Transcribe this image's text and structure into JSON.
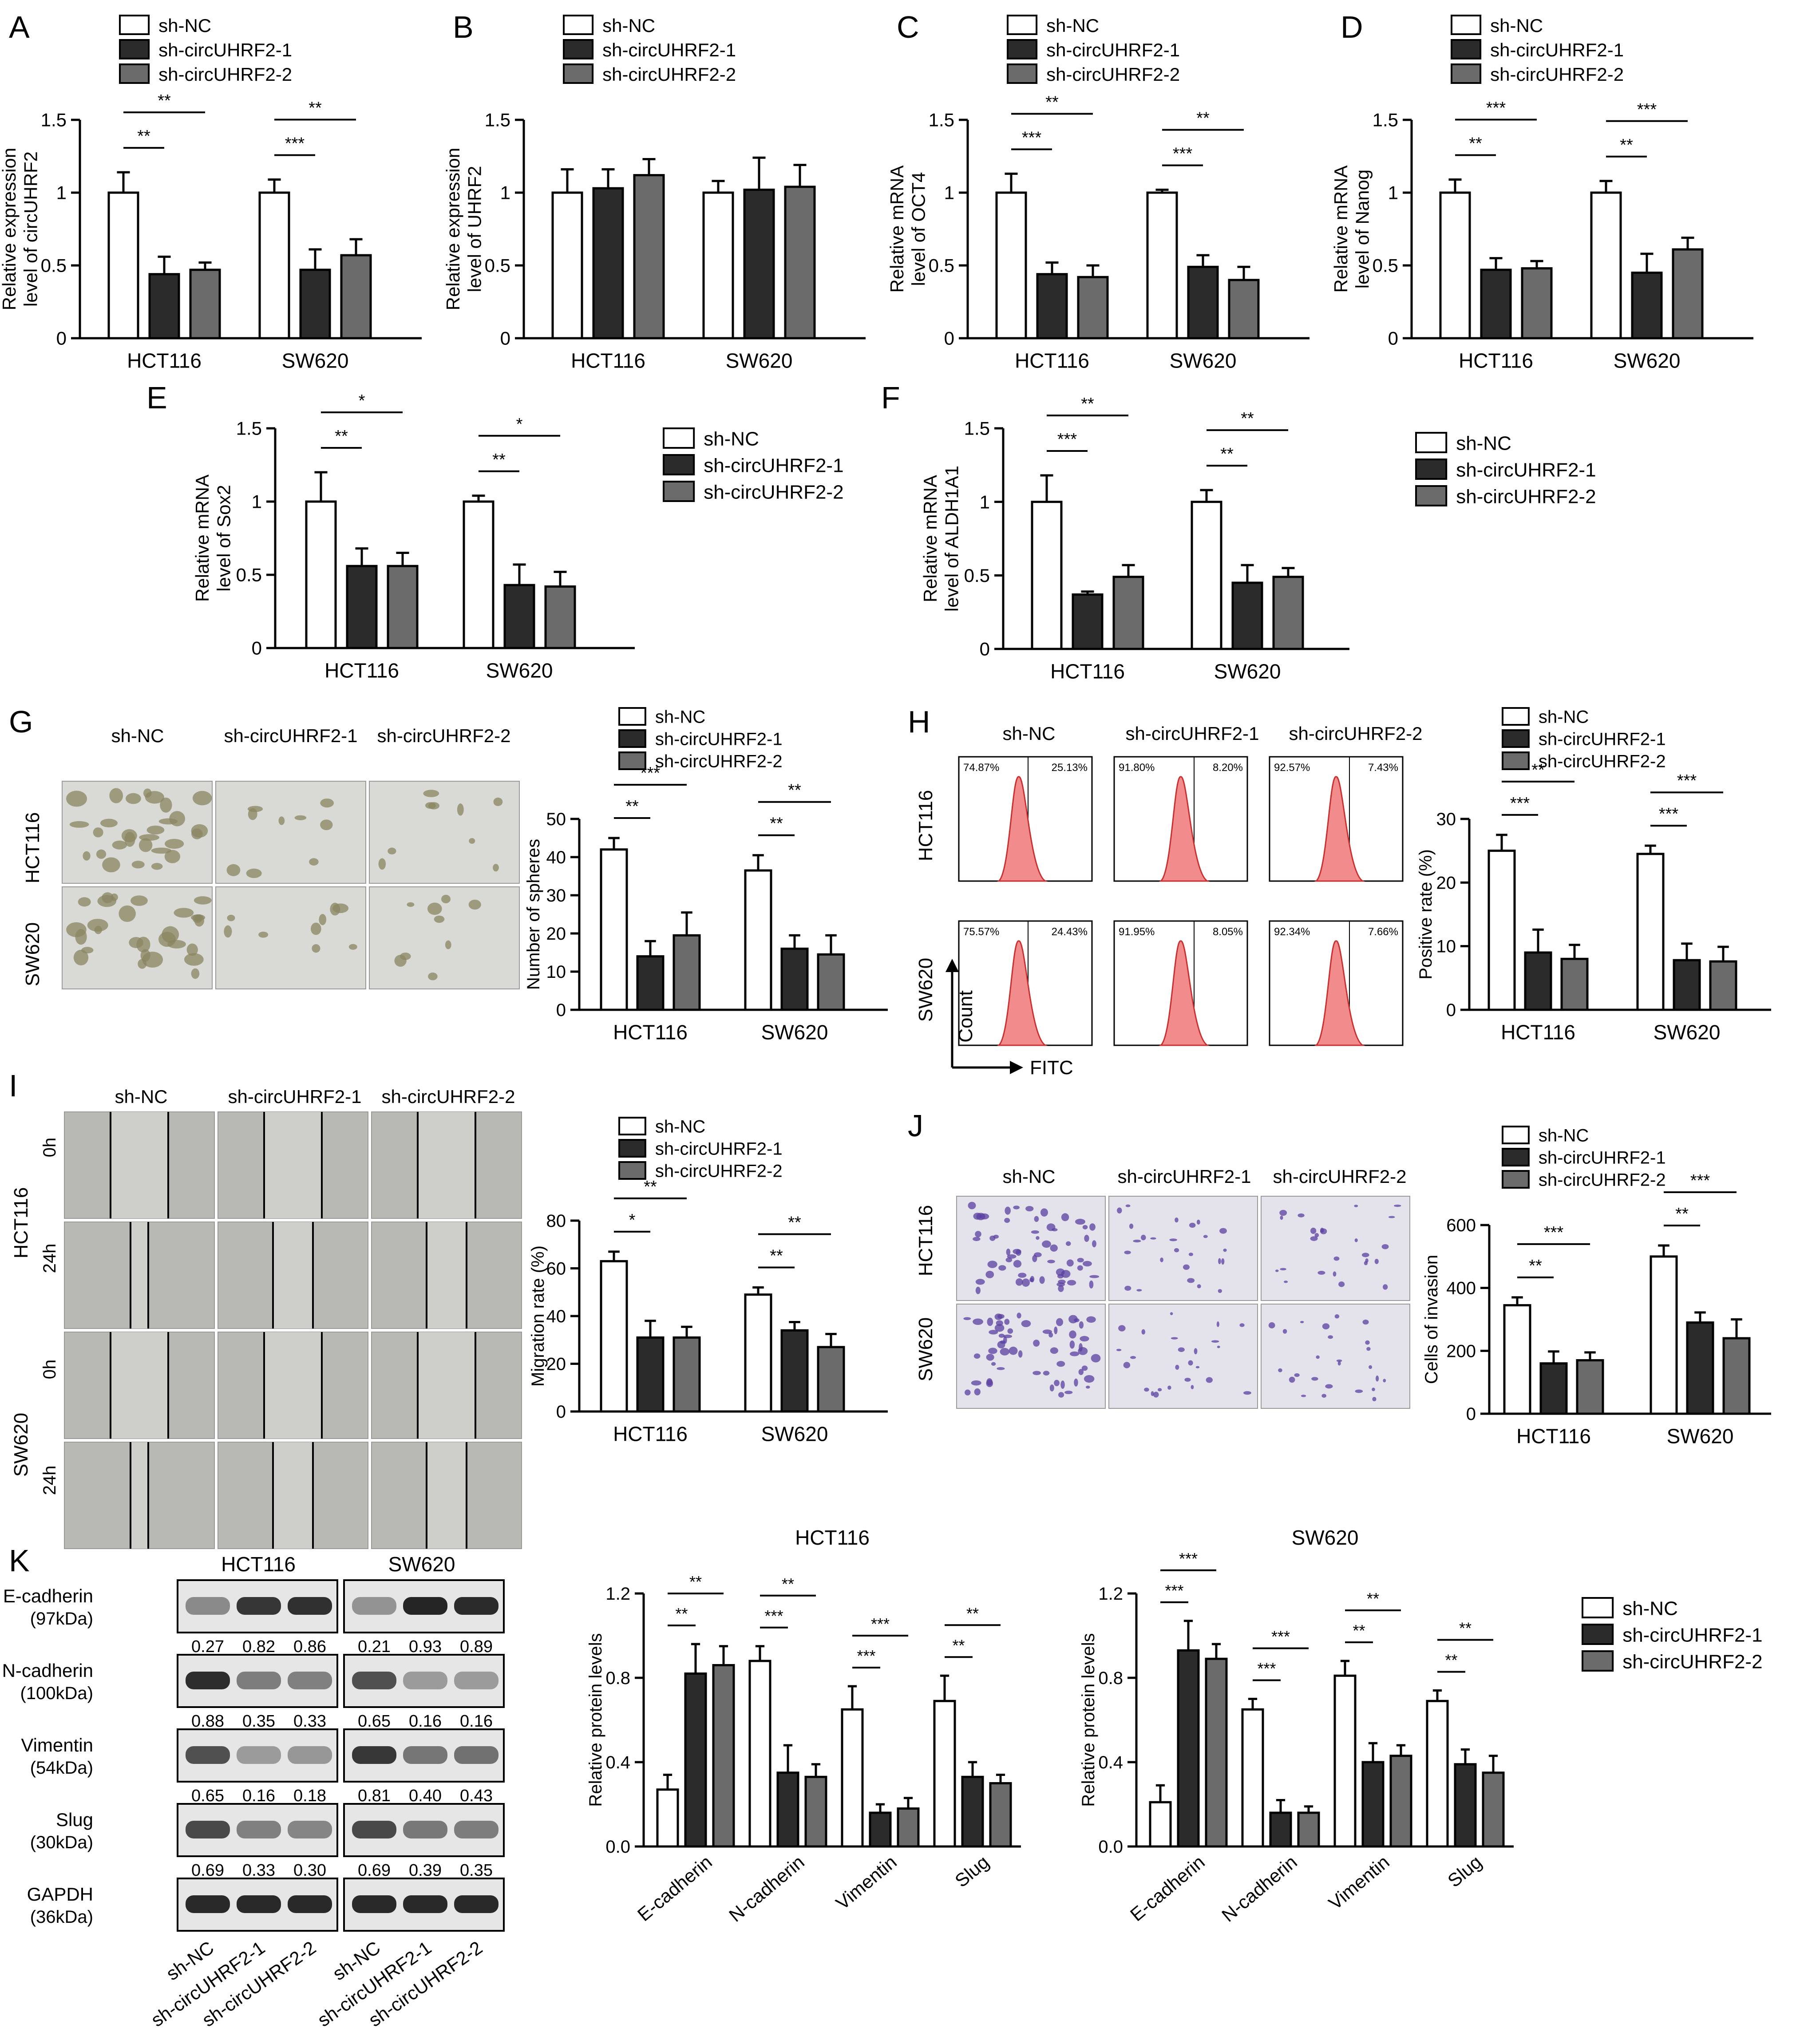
{
  "legend_labels": [
    "sh-NC",
    "sh-circUHRF2-1",
    "sh-circUHRF2-2"
  ],
  "colors": {
    "sh-NC": "#ffffff",
    "sh-circUHRF2-1": "#2b2b2b",
    "sh-circUHRF2-2": "#6b6b6b"
  },
  "groups": [
    "HCT116",
    "SW620"
  ],
  "panels": [
    {
      "letter": "A"
    },
    {
      "letter": "B"
    },
    {
      "letter": "C"
    },
    {
      "letter": "D"
    },
    {
      "letter": "E"
    },
    {
      "letter": "F"
    },
    {
      "letter": "G"
    },
    {
      "letter": "H"
    },
    {
      "letter": "I"
    },
    {
      "letter": "J"
    },
    {
      "letter": "K"
    }
  ],
  "images": {
    "G": {
      "cols": [
        "sh-NC",
        "sh-circUHRF2-1",
        "sh-circUHRF2-2"
      ],
      "rows": [
        "HCT116",
        "SW620"
      ]
    },
    "H": {
      "cols": [
        "sh-NC",
        "sh-circUHRF2-1",
        "sh-circUHRF2-2"
      ],
      "rows": [
        "HCT116",
        "SW620"
      ],
      "axis_y": "Count",
      "axis_x": "FITC",
      "quadrants": [
        [
          "74.87%",
          "25.13%"
        ],
        [
          "91.80%",
          "8.20%"
        ],
        [
          "92.57%",
          "7.43%"
        ],
        [
          "75.57%",
          "24.43%"
        ],
        [
          "91.95%",
          "8.05%"
        ],
        [
          "92.34%",
          "7.66%"
        ]
      ]
    },
    "I": {
      "cols": [
        "sh-NC",
        "sh-circUHRF2-1",
        "sh-circUHRF2-2"
      ],
      "rows": [
        "HCT116",
        "SW620"
      ],
      "times": [
        "0h",
        "24h"
      ]
    },
    "J": {
      "cols": [
        "sh-NC",
        "sh-circUHRF2-1",
        "sh-circUHRF2-2"
      ],
      "rows": [
        "HCT116",
        "SW620"
      ]
    }
  },
  "western": {
    "cell_lines": [
      "HCT116",
      "SW620"
    ],
    "lane_labels": [
      "sh-NC",
      "sh-circUHRF2-1",
      "sh-circUHRF2-2",
      "sh-NC",
      "sh-circUHRF2-1",
      "sh-circUHRF2-2"
    ],
    "proteins": [
      {
        "name": "E-cadherin",
        "kda": "(97kDa)",
        "values": [
          "0.27",
          "0.82",
          "0.86",
          "0.21",
          "0.93",
          "0.89"
        ]
      },
      {
        "name": "N-cadherin",
        "kda": "(100kDa)",
        "values": [
          "0.88",
          "0.35",
          "0.33",
          "0.65",
          "0.16",
          "0.16"
        ]
      },
      {
        "name": "Vimentin",
        "kda": "(54kDa)",
        "values": [
          "0.65",
          "0.16",
          "0.18",
          "0.81",
          "0.40",
          "0.43"
        ]
      },
      {
        "name": "Slug",
        "kda": "(30kDa)",
        "values": [
          "0.69",
          "0.33",
          "0.30",
          "0.69",
          "0.39",
          "0.35"
        ]
      },
      {
        "name": "GAPDH",
        "kda": "(36kDa)",
        "values": []
      }
    ]
  },
  "chart_data": [
    {
      "id": "A",
      "type": "bar",
      "categories": [
        "HCT116",
        "SW620"
      ],
      "ylabel": "Relative expression\nlevel of circUHRF2",
      "ylim": [
        0,
        1.5
      ],
      "yticks": [
        0,
        0.5,
        1.0,
        1.5
      ],
      "series": [
        {
          "name": "sh-NC",
          "values": [
            1.0,
            1.0
          ],
          "err": [
            0.14,
            0.09
          ]
        },
        {
          "name": "sh-circUHRF2-1",
          "values": [
            0.44,
            0.47
          ],
          "err": [
            0.12,
            0.14
          ]
        },
        {
          "name": "sh-circUHRF2-2",
          "values": [
            0.47,
            0.57
          ],
          "err": [
            0.05,
            0.11
          ]
        }
      ],
      "sig": [
        [
          "**",
          "**"
        ],
        [
          "**",
          "***"
        ]
      ]
    },
    {
      "id": "B",
      "type": "bar",
      "categories": [
        "HCT116",
        "SW620"
      ],
      "ylabel": "Relative expression\nlevel of UHRF2",
      "ylim": [
        0,
        1.5
      ],
      "yticks": [
        0,
        0.5,
        1.0,
        1.5
      ],
      "series": [
        {
          "name": "sh-NC",
          "values": [
            1.0,
            1.0
          ],
          "err": [
            0.16,
            0.08
          ]
        },
        {
          "name": "sh-circUHRF2-1",
          "values": [
            1.03,
            1.02
          ],
          "err": [
            0.13,
            0.22
          ]
        },
        {
          "name": "sh-circUHRF2-2",
          "values": [
            1.12,
            1.04
          ],
          "err": [
            0.11,
            0.15
          ]
        }
      ],
      "sig": [
        [
          "",
          ""
        ],
        [
          "",
          ""
        ]
      ]
    },
    {
      "id": "C",
      "type": "bar",
      "categories": [
        "HCT116",
        "SW620"
      ],
      "ylabel": "Relative mRNA\nlevel of OCT4",
      "ylim": [
        0,
        1.5
      ],
      "yticks": [
        0,
        0.5,
        1.0,
        1.5
      ],
      "series": [
        {
          "name": "sh-NC",
          "values": [
            1.0,
            1.0
          ],
          "err": [
            0.13,
            0.02
          ]
        },
        {
          "name": "sh-circUHRF2-1",
          "values": [
            0.44,
            0.49
          ],
          "err": [
            0.08,
            0.08
          ]
        },
        {
          "name": "sh-circUHRF2-2",
          "values": [
            0.42,
            0.4
          ],
          "err": [
            0.08,
            0.09
          ]
        }
      ],
      "sig": [
        [
          "**",
          "**"
        ],
        [
          "***",
          "***"
        ]
      ]
    },
    {
      "id": "D",
      "type": "bar",
      "categories": [
        "HCT116",
        "SW620"
      ],
      "ylabel": "Relative mRNA\nlevel of Nanog",
      "ylim": [
        0,
        1.5
      ],
      "yticks": [
        0,
        0.5,
        1.0,
        1.5
      ],
      "series": [
        {
          "name": "sh-NC",
          "values": [
            1.0,
            1.0
          ],
          "err": [
            0.09,
            0.08
          ]
        },
        {
          "name": "sh-circUHRF2-1",
          "values": [
            0.47,
            0.45
          ],
          "err": [
            0.08,
            0.13
          ]
        },
        {
          "name": "sh-circUHRF2-2",
          "values": [
            0.48,
            0.61
          ],
          "err": [
            0.05,
            0.08
          ]
        }
      ],
      "sig": [
        [
          "***",
          "***"
        ],
        [
          "**",
          "**"
        ]
      ]
    },
    {
      "id": "E",
      "type": "bar",
      "categories": [
        "HCT116",
        "SW620"
      ],
      "ylabel": "Relative mRNA\nlevel of Sox2",
      "ylim": [
        0,
        1.5
      ],
      "yticks": [
        0,
        0.5,
        1.0,
        1.5
      ],
      "series": [
        {
          "name": "sh-NC",
          "values": [
            1.0,
            1.0
          ],
          "err": [
            0.2,
            0.04
          ]
        },
        {
          "name": "sh-circUHRF2-1",
          "values": [
            0.56,
            0.43
          ],
          "err": [
            0.12,
            0.14
          ]
        },
        {
          "name": "sh-circUHRF2-2",
          "values": [
            0.56,
            0.42
          ],
          "err": [
            0.09,
            0.1
          ]
        }
      ],
      "sig": [
        [
          "*",
          "*"
        ],
        [
          "**",
          "**"
        ]
      ]
    },
    {
      "id": "F",
      "type": "bar",
      "categories": [
        "HCT116",
        "SW620"
      ],
      "ylabel": "Relative mRNA\nlevel of ALDH1A1",
      "ylim": [
        0,
        1.5
      ],
      "yticks": [
        0,
        0.5,
        1.0,
        1.5
      ],
      "series": [
        {
          "name": "sh-NC",
          "values": [
            1.0,
            1.0
          ],
          "err": [
            0.18,
            0.08
          ]
        },
        {
          "name": "sh-circUHRF2-1",
          "values": [
            0.37,
            0.45
          ],
          "err": [
            0.02,
            0.12
          ]
        },
        {
          "name": "sh-circUHRF2-2",
          "values": [
            0.49,
            0.49
          ],
          "err": [
            0.08,
            0.06
          ]
        }
      ],
      "sig": [
        [
          "**",
          "**"
        ],
        [
          "***",
          "**"
        ]
      ]
    },
    {
      "id": "G",
      "type": "bar",
      "categories": [
        "HCT116",
        "SW620"
      ],
      "ylabel": "Number of spheres",
      "ylim": [
        0,
        50
      ],
      "yticks": [
        0,
        10,
        20,
        30,
        40,
        50
      ],
      "series": [
        {
          "name": "sh-NC",
          "values": [
            42,
            36.5
          ],
          "err": [
            3,
            4
          ]
        },
        {
          "name": "sh-circUHRF2-1",
          "values": [
            14,
            16
          ],
          "err": [
            4,
            3.5
          ]
        },
        {
          "name": "sh-circUHRF2-2",
          "values": [
            19.5,
            14.5
          ],
          "err": [
            6,
            5
          ]
        }
      ],
      "sig": [
        [
          "***",
          "**"
        ],
        [
          "**",
          "**"
        ]
      ]
    },
    {
      "id": "H",
      "type": "bar",
      "categories": [
        "HCT116",
        "SW620"
      ],
      "ylabel": "Positive rate (%)",
      "ylim": [
        0,
        30
      ],
      "yticks": [
        0,
        10,
        20,
        30
      ],
      "series": [
        {
          "name": "sh-NC",
          "values": [
            25,
            24.5
          ],
          "err": [
            2.5,
            1.3
          ]
        },
        {
          "name": "sh-circUHRF2-1",
          "values": [
            9,
            7.8
          ],
          "err": [
            3.6,
            2.6
          ]
        },
        {
          "name": "sh-circUHRF2-2",
          "values": [
            8,
            7.6
          ],
          "err": [
            2.2,
            2.3
          ]
        }
      ],
      "sig": [
        [
          "**",
          "***"
        ],
        [
          "***",
          "***"
        ]
      ]
    },
    {
      "id": "I",
      "type": "bar",
      "categories": [
        "HCT116",
        "SW620"
      ],
      "ylabel": "Migration rate (%)",
      "ylim": [
        0,
        80
      ],
      "yticks": [
        0,
        20,
        40,
        60,
        80
      ],
      "series": [
        {
          "name": "sh-NC",
          "values": [
            63,
            49
          ],
          "err": [
            4,
            3
          ]
        },
        {
          "name": "sh-circUHRF2-1",
          "values": [
            31,
            34
          ],
          "err": [
            7,
            3.5
          ]
        },
        {
          "name": "sh-circUHRF2-2",
          "values": [
            31,
            27
          ],
          "err": [
            4.5,
            5.5
          ]
        }
      ],
      "sig": [
        [
          "**",
          "**"
        ],
        [
          "*",
          "**"
        ]
      ]
    },
    {
      "id": "J",
      "type": "bar",
      "categories": [
        "HCT116",
        "SW620"
      ],
      "ylabel": "Cells of invasion",
      "ylim": [
        0,
        600
      ],
      "yticks": [
        0,
        200,
        400,
        600
      ],
      "series": [
        {
          "name": "sh-NC",
          "values": [
            345,
            500
          ],
          "err": [
            25,
            35
          ]
        },
        {
          "name": "sh-circUHRF2-1",
          "values": [
            160,
            290
          ],
          "err": [
            38,
            32
          ]
        },
        {
          "name": "sh-circUHRF2-2",
          "values": [
            170,
            240
          ],
          "err": [
            25,
            60
          ]
        }
      ],
      "sig": [
        [
          "***",
          "***"
        ],
        [
          "**",
          "**"
        ]
      ]
    },
    {
      "id": "K1",
      "type": "bar",
      "title": "HCT116",
      "categories": [
        "E-cadherin",
        "N-cadherin",
        "Vimentin",
        "Slug"
      ],
      "ylabel": "Relative protein levels",
      "ylim": [
        0,
        1.2
      ],
      "yticks": [
        0.0,
        0.4,
        0.8,
        1.2
      ],
      "series": [
        {
          "name": "sh-NC",
          "values": [
            0.27,
            0.88,
            0.65,
            0.69
          ],
          "err": [
            0.07,
            0.07,
            0.11,
            0.12
          ]
        },
        {
          "name": "sh-circUHRF2-1",
          "values": [
            0.82,
            0.35,
            0.16,
            0.33
          ],
          "err": [
            0.14,
            0.13,
            0.04,
            0.07
          ]
        },
        {
          "name": "sh-circUHRF2-2",
          "values": [
            0.86,
            0.33,
            0.18,
            0.3
          ],
          "err": [
            0.09,
            0.06,
            0.05,
            0.04
          ]
        }
      ],
      "sig": [
        [
          "**",
          "**",
          "***",
          "**"
        ],
        [
          "**",
          "***",
          "***",
          "**"
        ]
      ]
    },
    {
      "id": "K2",
      "type": "bar",
      "title": "SW620",
      "categories": [
        "E-cadherin",
        "N-cadherin",
        "Vimentin",
        "Slug"
      ],
      "ylabel": "Relative protein levels",
      "ylim": [
        0,
        1.2
      ],
      "yticks": [
        0.0,
        0.4,
        0.8,
        1.2
      ],
      "series": [
        {
          "name": "sh-NC",
          "values": [
            0.21,
            0.65,
            0.81,
            0.69
          ],
          "err": [
            0.08,
            0.05,
            0.07,
            0.05
          ]
        },
        {
          "name": "sh-circUHRF2-1",
          "values": [
            0.93,
            0.16,
            0.4,
            0.39
          ],
          "err": [
            0.14,
            0.06,
            0.09,
            0.07
          ]
        },
        {
          "name": "sh-circUHRF2-2",
          "values": [
            0.89,
            0.16,
            0.43,
            0.35
          ],
          "err": [
            0.07,
            0.03,
            0.05,
            0.08
          ]
        }
      ],
      "sig": [
        [
          "***",
          "***",
          "**",
          "**"
        ],
        [
          "***",
          "***",
          "**",
          "**"
        ]
      ]
    }
  ]
}
